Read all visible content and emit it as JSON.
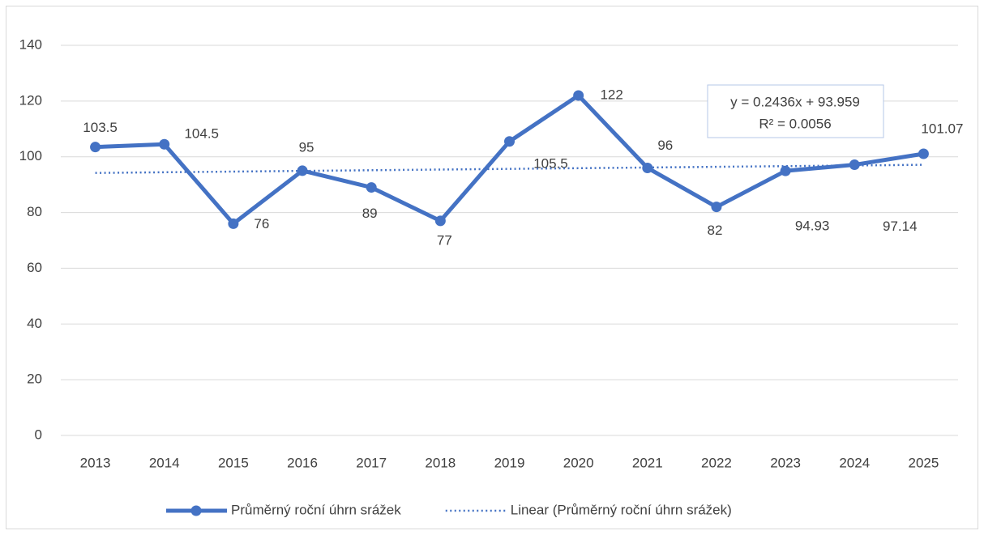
{
  "chart_data": {
    "type": "line",
    "categories": [
      "2013",
      "2014",
      "2015",
      "2016",
      "2017",
      "2018",
      "2019",
      "2020",
      "2021",
      "2022",
      "2023",
      "2024",
      "2025"
    ],
    "series": [
      {
        "name": "Průměrný roční úhrn srážek",
        "color": "#4472c4",
        "values": [
          103.5,
          104.5,
          76,
          95,
          89,
          77,
          105.5,
          122,
          96,
          82,
          94.93,
          97.14,
          101.07
        ]
      },
      {
        "name": "Linear (Průměrný roční úhrn srážek)",
        "color": "#4472c4",
        "dotted": true,
        "values": [
          94.2,
          94.45,
          94.69,
          94.93,
          95.18,
          95.42,
          95.66,
          95.91,
          96.15,
          96.4,
          96.64,
          96.88,
          97.13
        ]
      }
    ],
    "annotations": [
      "y = 0.2436x + 93.959",
      "R² = 0.0056"
    ],
    "ylim": [
      0,
      140
    ],
    "yticks": [
      0,
      20,
      40,
      60,
      80,
      100,
      120,
      140
    ],
    "grid": true,
    "legend": "bottom"
  }
}
